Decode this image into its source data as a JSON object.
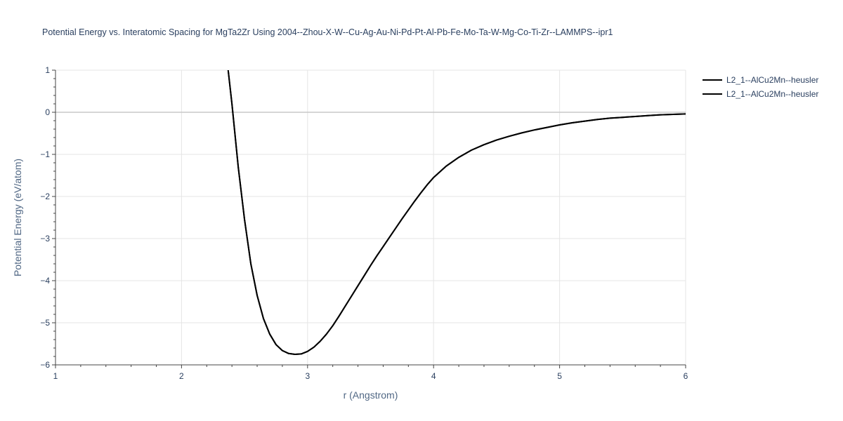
{
  "chart_data": {
    "type": "line",
    "title": "Potential Energy vs. Interatomic Spacing for MgTa2Zr Using 2004--Zhou-X-W--Cu-Ag-Au-Ni-Pd-Pt-Al-Pb-Fe-Mo-Ta-W-Mg-Co-Ti-Zr--LAMMPS--ipr1",
    "xlabel": "r (Angstrom)",
    "ylabel": "Potential Energy (eV/atom)",
    "xlim": [
      1,
      6
    ],
    "ylim": [
      -6,
      1
    ],
    "xticks": [
      1,
      2,
      3,
      4,
      5,
      6
    ],
    "yticks": [
      1,
      0,
      -1,
      -2,
      -3,
      -4,
      -5,
      -6
    ],
    "xtick_labels": [
      "1",
      "2",
      "3",
      "4",
      "5",
      "6"
    ],
    "ytick_labels": [
      "1",
      "0",
      "−1",
      "−2",
      "−3",
      "−4",
      "−5",
      "−6"
    ],
    "grid": true,
    "legend_position": "top-right",
    "colors": {
      "series": "#000000",
      "grid": "#e5e5e5",
      "zeroline": "#c8c8c8",
      "text": "#2a3f5f"
    },
    "series": [
      {
        "name": "L2_1--AlCu2Mn--heusler",
        "x": [
          2.37,
          2.4,
          2.45,
          2.5,
          2.55,
          2.6,
          2.65,
          2.7,
          2.75,
          2.8,
          2.85,
          2.9,
          2.95,
          3.0,
          3.05,
          3.1,
          3.15,
          3.2,
          3.25,
          3.3,
          3.35,
          3.4,
          3.45,
          3.5,
          3.55,
          3.6,
          3.65,
          3.7,
          3.75,
          3.8,
          3.85,
          3.9,
          3.95,
          4.0,
          4.1,
          4.2,
          4.3,
          4.4,
          4.5,
          4.6,
          4.7,
          4.8,
          4.9,
          5.0,
          5.1,
          5.2,
          5.3,
          5.4,
          5.5,
          5.6,
          5.7,
          5.8,
          5.9,
          6.0
        ],
        "y": [
          1.0,
          0.2,
          -1.3,
          -2.55,
          -3.6,
          -4.35,
          -4.9,
          -5.27,
          -5.52,
          -5.66,
          -5.73,
          -5.75,
          -5.74,
          -5.68,
          -5.58,
          -5.44,
          -5.27,
          -5.07,
          -4.84,
          -4.6,
          -4.36,
          -4.12,
          -3.88,
          -3.64,
          -3.41,
          -3.19,
          -2.97,
          -2.75,
          -2.53,
          -2.32,
          -2.11,
          -1.91,
          -1.72,
          -1.55,
          -1.28,
          -1.07,
          -0.9,
          -0.77,
          -0.66,
          -0.57,
          -0.49,
          -0.42,
          -0.36,
          -0.3,
          -0.25,
          -0.21,
          -0.17,
          -0.14,
          -0.12,
          -0.1,
          -0.08,
          -0.06,
          -0.05,
          -0.04
        ]
      },
      {
        "name": "L2_1--AlCu2Mn--heusler",
        "x": [
          2.37,
          2.4,
          2.45,
          2.5,
          2.55,
          2.6,
          2.65,
          2.7,
          2.75,
          2.8,
          2.85,
          2.9,
          2.95,
          3.0,
          3.05,
          3.1,
          3.15,
          3.2,
          3.25,
          3.3,
          3.35,
          3.4,
          3.45,
          3.5,
          3.55,
          3.6,
          3.65,
          3.7,
          3.75,
          3.8,
          3.85,
          3.9,
          3.95,
          4.0,
          4.1,
          4.2,
          4.3,
          4.4,
          4.5,
          4.6,
          4.7,
          4.8,
          4.9,
          5.0,
          5.1,
          5.2,
          5.3,
          5.4,
          5.5,
          5.6,
          5.7,
          5.8,
          5.9,
          6.0
        ],
        "y": [
          1.0,
          0.2,
          -1.3,
          -2.55,
          -3.6,
          -4.35,
          -4.9,
          -5.27,
          -5.52,
          -5.66,
          -5.73,
          -5.75,
          -5.74,
          -5.68,
          -5.58,
          -5.44,
          -5.27,
          -5.07,
          -4.84,
          -4.6,
          -4.36,
          -4.12,
          -3.88,
          -3.64,
          -3.41,
          -3.19,
          -2.97,
          -2.75,
          -2.53,
          -2.32,
          -2.11,
          -1.91,
          -1.72,
          -1.55,
          -1.28,
          -1.07,
          -0.9,
          -0.77,
          -0.66,
          -0.57,
          -0.49,
          -0.42,
          -0.36,
          -0.3,
          -0.25,
          -0.21,
          -0.17,
          -0.14,
          -0.12,
          -0.1,
          -0.08,
          -0.06,
          -0.05,
          -0.04
        ]
      }
    ]
  }
}
